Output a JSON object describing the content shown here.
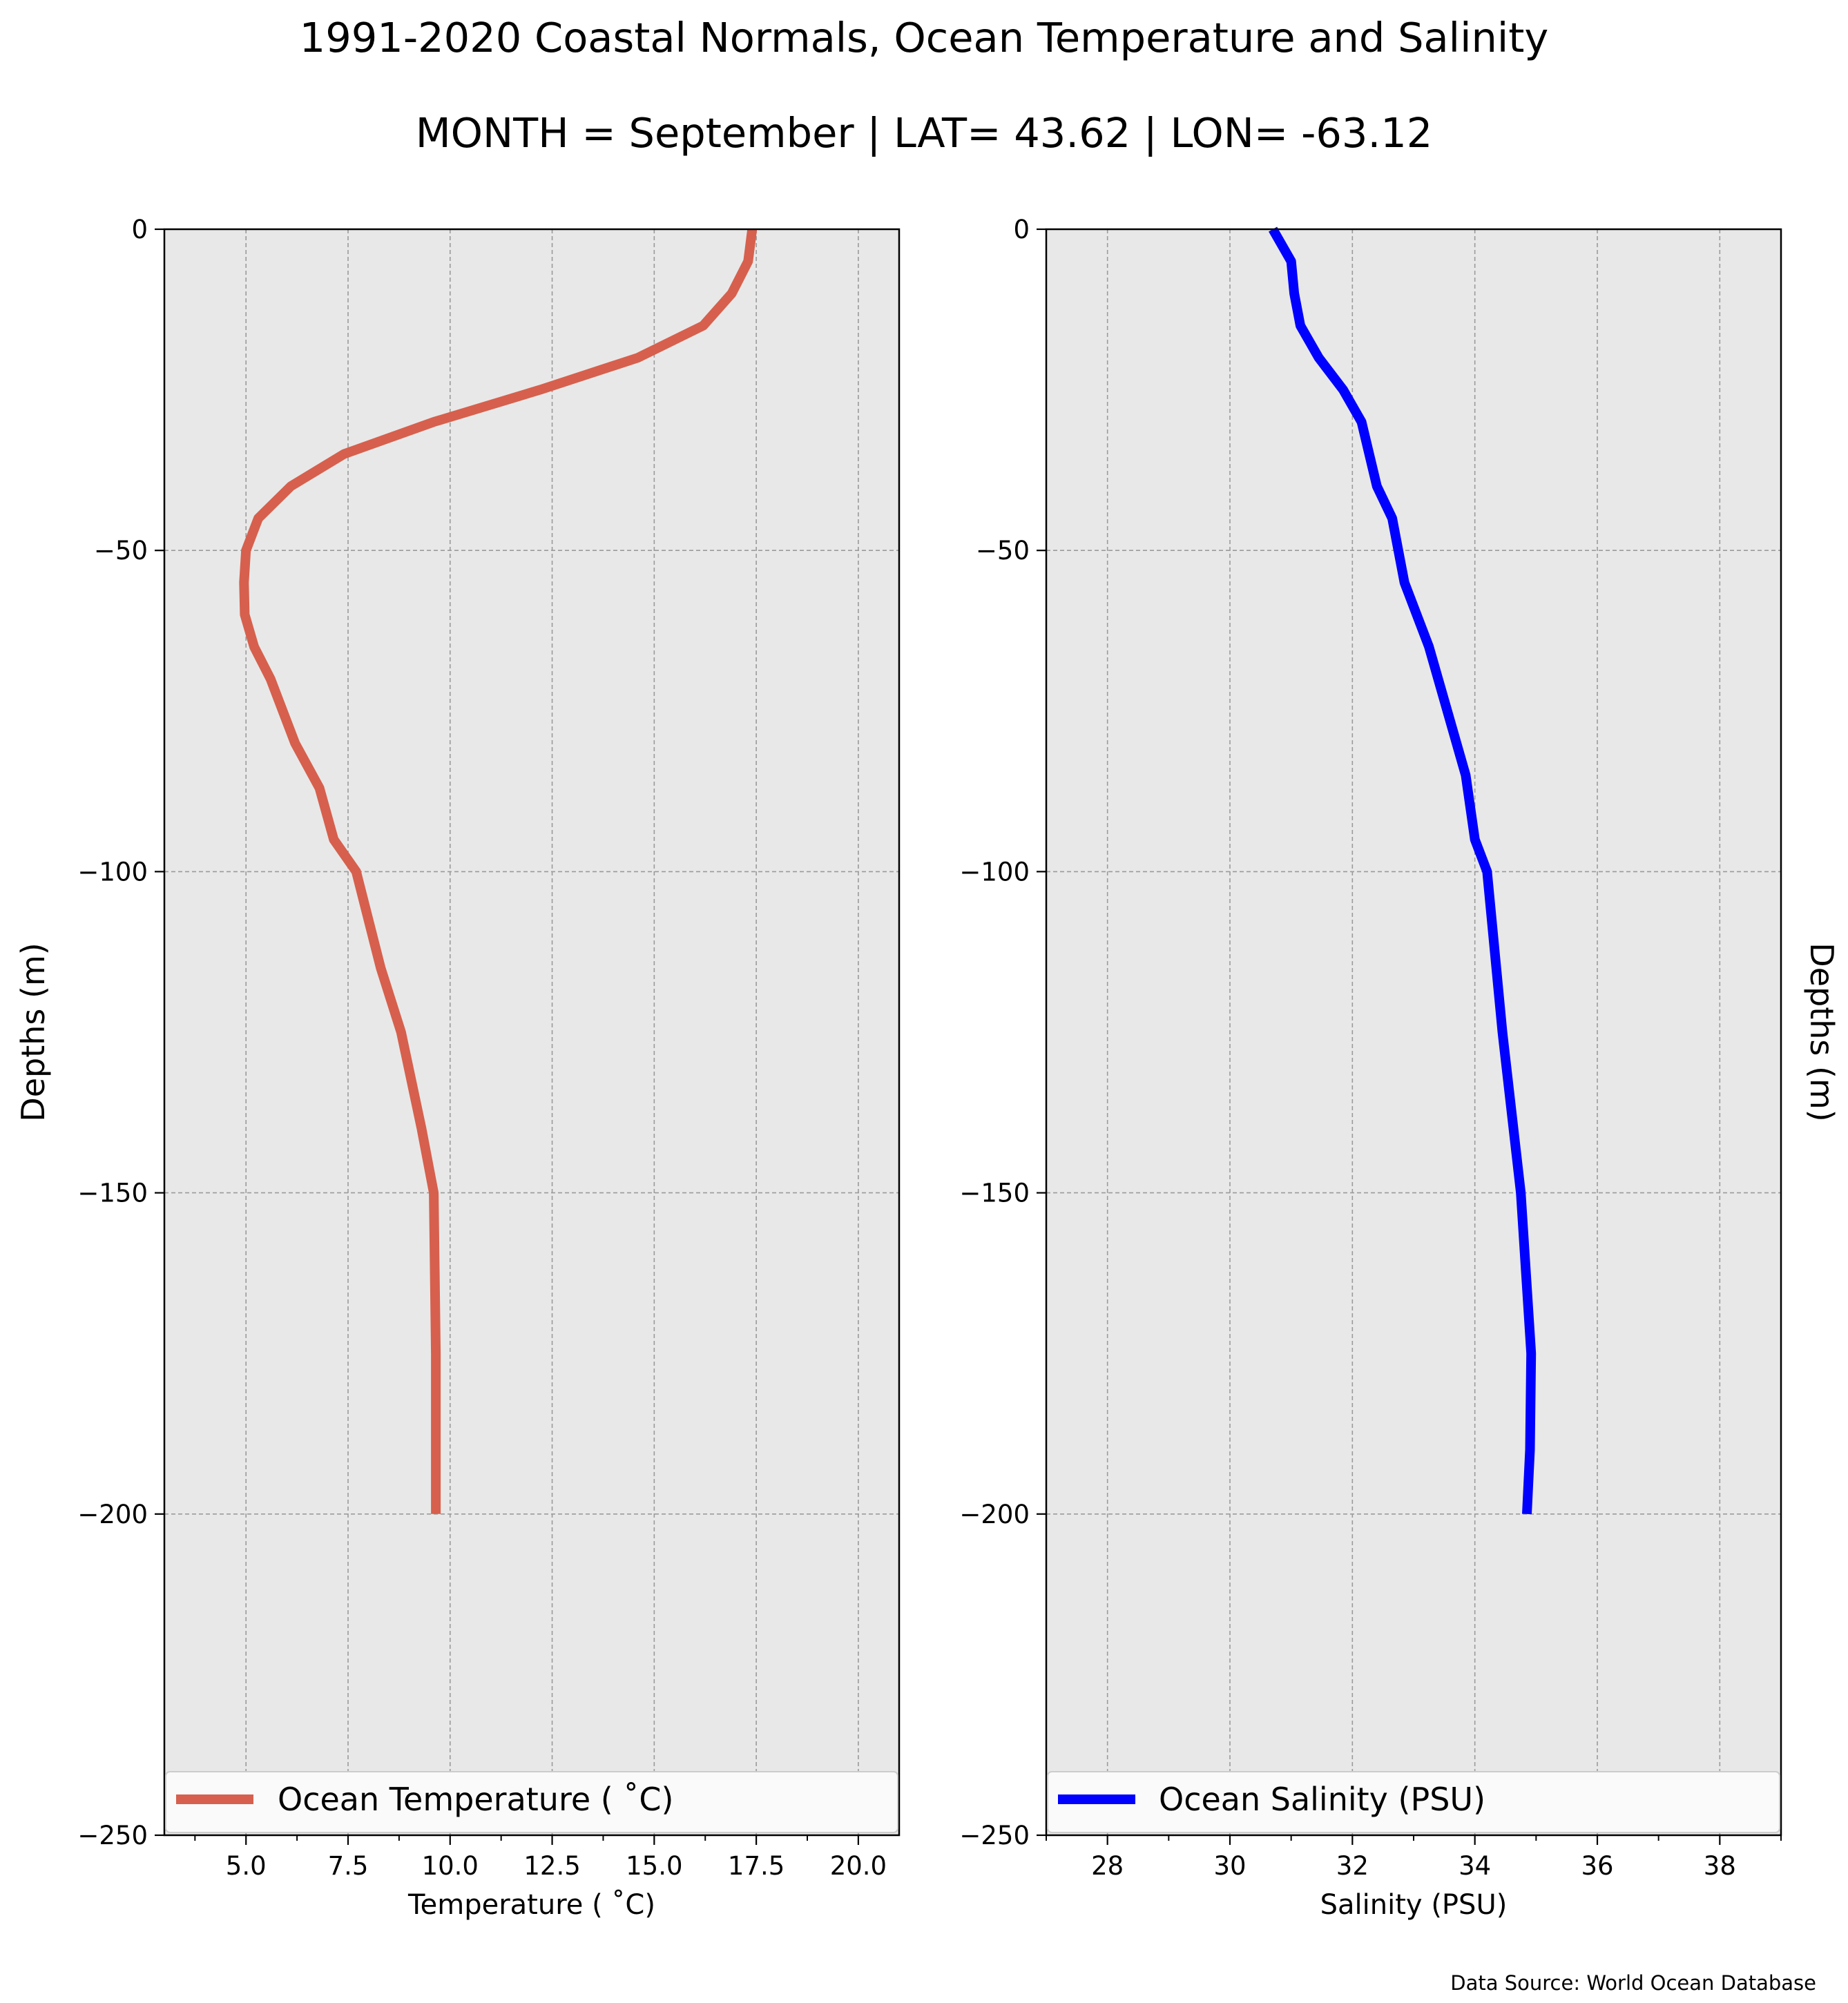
{
  "figure": {
    "title": "1991-2020 Coastal Normals, Ocean Temperature and Salinity",
    "subtitle": "MONTH = September | LAT= 43.62 | LON= -63.12",
    "source_note": "Data Source: World Ocean Database",
    "background_color": "#ffffff",
    "axes_facecolor": "#e8e8e8",
    "grid_color": "#9a9a9a"
  },
  "chart_data": [
    {
      "type": "line",
      "xlabel": "Temperature ($^\\circ$C)",
      "xlabel_display": "Temperature ( ˚C)",
      "ylabel": "Depths (m)",
      "ylabel_side": "left",
      "xlim": [
        3,
        21
      ],
      "ylim": [
        -250,
        0
      ],
      "xticks": [
        5,
        7.5,
        10,
        12.5,
        15,
        17.5,
        20
      ],
      "xtick_labels": [
        "5.0",
        "7.5",
        "10.0",
        "12.5",
        "15.0",
        "17.5",
        "20.0"
      ],
      "yticks": [
        0,
        -50,
        -100,
        -150,
        -200,
        -250
      ],
      "ytick_labels": [
        "0",
        "−50",
        "−100",
        "−150",
        "−200",
        "−250"
      ],
      "grid": true,
      "legend": {
        "position": "bottom",
        "label": "Ocean Temperature ( ˚C)"
      },
      "series": [
        {
          "name": "Ocean Temperature ( ˚C)",
          "color": "#d6604d",
          "x": [
            17.4,
            17.3,
            16.9,
            16.2,
            14.6,
            12.2,
            9.6,
            7.4,
            6.1,
            5.3,
            5.0,
            4.95,
            4.97,
            5.2,
            5.6,
            6.2,
            6.8,
            7.15,
            7.7,
            8.3,
            8.8,
            9.3,
            9.6,
            9.65,
            9.65,
            9.65
          ],
          "y": [
            0,
            -5,
            -10,
            -15,
            -20,
            -25,
            -30,
            -35,
            -40,
            -45,
            -50,
            -55,
            -60,
            -65,
            -70,
            -80,
            -87,
            -95,
            -100,
            -115,
            -125,
            -140,
            -150,
            -175,
            -190,
            -200
          ]
        }
      ]
    },
    {
      "type": "line",
      "xlabel": "Salinity (PSU)",
      "ylabel": "Depths (m)",
      "ylabel_side": "right",
      "xlim": [
        27,
        39
      ],
      "ylim": [
        -250,
        0
      ],
      "xticks": [
        28,
        30,
        32,
        34,
        36,
        38
      ],
      "xtick_labels": [
        "28",
        "30",
        "32",
        "34",
        "36",
        "38"
      ],
      "yticks": [
        0,
        -50,
        -100,
        -150,
        -200,
        -250
      ],
      "ytick_labels": [
        "0",
        "−50",
        "−100",
        "−150",
        "−200",
        "−250"
      ],
      "grid": true,
      "legend": {
        "position": "bottom",
        "label": "Ocean Salinity (PSU)"
      },
      "series": [
        {
          "name": "Ocean Salinity (PSU)",
          "color": "#0000ff",
          "x": [
            30.7,
            31.0,
            31.05,
            31.15,
            31.45,
            31.85,
            32.15,
            32.4,
            32.65,
            32.85,
            33.25,
            33.7,
            33.85,
            34.0,
            34.2,
            34.45,
            34.75,
            34.92,
            34.9,
            34.85
          ],
          "y": [
            0,
            -5,
            -10,
            -15,
            -20,
            -25,
            -30,
            -40,
            -45,
            -55,
            -65,
            -80,
            -85,
            -95,
            -100,
            -125,
            -150,
            -175,
            -190,
            -200
          ]
        }
      ]
    }
  ]
}
